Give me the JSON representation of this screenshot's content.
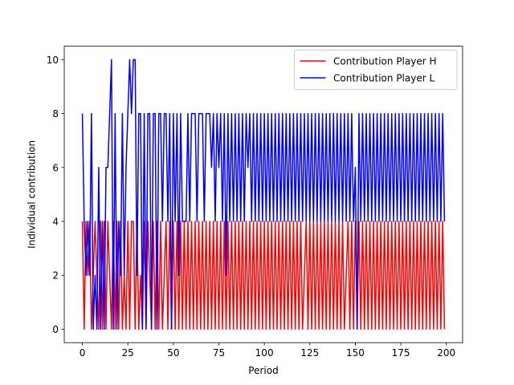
{
  "chart_data": {
    "type": "line",
    "title": "",
    "xlabel": "Period",
    "ylabel": "Individual contribution",
    "xlim": [
      -9.95,
      208.95
    ],
    "ylim": [
      -0.5,
      10.5
    ],
    "xticks": [
      0,
      25,
      50,
      75,
      100,
      125,
      150,
      175,
      200
    ],
    "yticks": [
      0,
      2,
      4,
      6,
      8,
      10
    ],
    "grid": false,
    "legend_position": "top-right",
    "series": [
      {
        "name": "Contribution Player H",
        "color": "#ff0000",
        "x": [
          0,
          1,
          2,
          3,
          4,
          5,
          6,
          7,
          8,
          9,
          10,
          11,
          12,
          13,
          14,
          15,
          16,
          17,
          18,
          19,
          20,
          21,
          22,
          23,
          24,
          25,
          26,
          27,
          28,
          29,
          30,
          31,
          32,
          33,
          34,
          35,
          36,
          37,
          38,
          39,
          40,
          41,
          42,
          43,
          44,
          45,
          46,
          47,
          48,
          49,
          50,
          51,
          52,
          53,
          54,
          55,
          56,
          57,
          58,
          59,
          60,
          61,
          62,
          63,
          64,
          65,
          66,
          67,
          68,
          69,
          70,
          71,
          72,
          73,
          74,
          75,
          76,
          77,
          78,
          79,
          80,
          81,
          82,
          83,
          84,
          85,
          86,
          87,
          88,
          89,
          90,
          91,
          92,
          93,
          94,
          95,
          96,
          97,
          98,
          99,
          100,
          101,
          102,
          103,
          104,
          105,
          106,
          107,
          108,
          109,
          110,
          111,
          112,
          113,
          114,
          115,
          116,
          117,
          118,
          119,
          120,
          121,
          122,
          123,
          124,
          125,
          126,
          127,
          128,
          129,
          130,
          131,
          132,
          133,
          134,
          135,
          136,
          137,
          138,
          139,
          140,
          141,
          142,
          143,
          144,
          145,
          146,
          147,
          148,
          149,
          150,
          151,
          152,
          153,
          154,
          155,
          156,
          157,
          158,
          159,
          160,
          161,
          162,
          163,
          164,
          165,
          166,
          167,
          168,
          169,
          170,
          171,
          172,
          173,
          174,
          175,
          176,
          177,
          178,
          179,
          180,
          181,
          182,
          183,
          184,
          185,
          186,
          187,
          188,
          189,
          190,
          191,
          192,
          193,
          194,
          195,
          196,
          197,
          198,
          199
        ],
        "values": [
          4,
          0,
          4,
          2,
          4,
          0,
          2,
          4,
          2,
          0,
          4,
          0,
          4,
          0,
          4,
          2,
          0,
          4,
          0,
          4,
          0,
          4,
          0,
          2,
          0,
          4,
          0,
          4,
          4,
          0,
          4,
          0,
          2,
          0,
          4,
          0,
          4,
          2,
          0,
          4,
          0,
          4,
          0,
          4,
          0,
          2,
          4,
          0,
          4,
          0,
          4,
          0,
          4,
          0,
          4,
          0,
          4,
          0,
          4,
          0,
          4,
          0,
          4,
          0,
          4,
          0,
          4,
          0,
          4,
          0,
          4,
          0,
          4,
          0,
          4,
          0,
          4,
          0,
          4,
          0,
          4,
          0,
          4,
          0,
          4,
          0,
          4,
          0,
          4,
          0,
          4,
          0,
          4,
          0,
          4,
          0,
          4,
          0,
          4,
          0,
          4,
          0,
          4,
          0,
          4,
          0,
          4,
          0,
          4,
          0,
          4,
          0,
          4,
          0,
          4,
          0,
          4,
          0,
          4,
          0,
          4,
          0,
          2,
          4,
          0,
          4,
          0,
          4,
          0,
          4,
          0,
          4,
          0,
          4,
          0,
          4,
          0,
          4,
          0,
          4,
          0,
          4,
          0,
          4,
          0,
          2,
          4,
          0,
          4,
          0,
          4,
          0,
          4,
          0,
          4,
          0,
          4,
          0,
          4,
          0,
          4,
          0,
          4,
          0,
          4,
          0,
          4,
          0,
          4,
          0,
          4,
          0,
          4,
          0,
          4,
          0,
          4,
          0,
          4,
          0,
          4,
          0,
          4,
          0,
          4,
          0,
          4,
          0,
          4,
          0,
          4,
          0,
          4,
          0,
          4,
          0,
          4,
          0,
          4,
          0
        ]
      },
      {
        "name": "Contribution Player L",
        "color": "#0000ff",
        "x": [
          0,
          1,
          2,
          3,
          4,
          5,
          6,
          7,
          8,
          9,
          10,
          11,
          12,
          13,
          14,
          15,
          16,
          17,
          18,
          19,
          20,
          21,
          22,
          23,
          24,
          25,
          26,
          27,
          28,
          29,
          30,
          31,
          32,
          33,
          34,
          35,
          36,
          37,
          38,
          39,
          40,
          41,
          42,
          43,
          44,
          45,
          46,
          47,
          48,
          49,
          50,
          51,
          52,
          53,
          54,
          55,
          56,
          57,
          58,
          59,
          60,
          61,
          62,
          63,
          64,
          65,
          66,
          67,
          68,
          69,
          70,
          71,
          72,
          73,
          74,
          75,
          76,
          77,
          78,
          79,
          80,
          81,
          82,
          83,
          84,
          85,
          86,
          87,
          88,
          89,
          90,
          91,
          92,
          93,
          94,
          95,
          96,
          97,
          98,
          99,
          100,
          101,
          102,
          103,
          104,
          105,
          106,
          107,
          108,
          109,
          110,
          111,
          112,
          113,
          114,
          115,
          116,
          117,
          118,
          119,
          120,
          121,
          122,
          123,
          124,
          125,
          126,
          127,
          128,
          129,
          130,
          131,
          132,
          133,
          134,
          135,
          136,
          137,
          138,
          139,
          140,
          141,
          142,
          143,
          144,
          145,
          146,
          147,
          148,
          149,
          150,
          151,
          152,
          153,
          154,
          155,
          156,
          157,
          158,
          159,
          160,
          161,
          162,
          163,
          164,
          165,
          166,
          167,
          168,
          169,
          170,
          171,
          172,
          173,
          174,
          175,
          176,
          177,
          178,
          179,
          180,
          181,
          182,
          183,
          184,
          185,
          186,
          187,
          188,
          189,
          190,
          191,
          192,
          193,
          194,
          195,
          196,
          197,
          198,
          199
        ],
        "values": [
          8,
          4,
          2,
          4,
          2,
          8,
          0,
          2,
          0,
          6,
          0,
          4,
          0,
          6,
          6,
          8,
          10,
          0,
          8,
          0,
          4,
          2,
          8,
          2,
          6,
          8,
          10,
          8,
          10,
          10,
          2,
          8,
          8,
          0,
          8,
          0,
          8,
          8,
          0,
          8,
          8,
          0,
          8,
          8,
          4,
          8,
          8,
          4,
          8,
          0,
          8,
          4,
          8,
          2,
          8,
          4,
          4,
          4,
          8,
          4,
          8,
          8,
          8,
          4,
          8,
          8,
          8,
          4,
          8,
          8,
          8,
          6,
          8,
          4,
          8,
          6,
          8,
          4,
          8,
          2,
          8,
          4,
          8,
          4,
          8,
          4,
          8,
          4,
          8,
          4,
          8,
          6,
          8,
          4,
          8,
          4,
          8,
          4,
          8,
          4,
          8,
          4,
          8,
          4,
          8,
          4,
          8,
          4,
          8,
          4,
          8,
          4,
          8,
          4,
          8,
          4,
          8,
          4,
          8,
          4,
          8,
          4,
          8,
          4,
          8,
          4,
          8,
          4,
          8,
          4,
          8,
          4,
          8,
          4,
          8,
          4,
          8,
          4,
          8,
          4,
          8,
          4,
          8,
          4,
          8,
          4,
          8,
          4,
          8,
          4,
          6,
          0,
          8,
          4,
          8,
          4,
          8,
          4,
          8,
          4,
          8,
          4,
          8,
          4,
          8,
          4,
          8,
          4,
          8,
          4,
          8,
          4,
          8,
          4,
          8,
          4,
          8,
          4,
          8,
          4,
          8,
          4,
          8,
          4,
          8,
          4,
          8,
          4,
          8,
          4,
          8,
          4,
          8,
          4,
          8,
          4,
          8,
          4,
          8,
          4
        ]
      }
    ]
  }
}
